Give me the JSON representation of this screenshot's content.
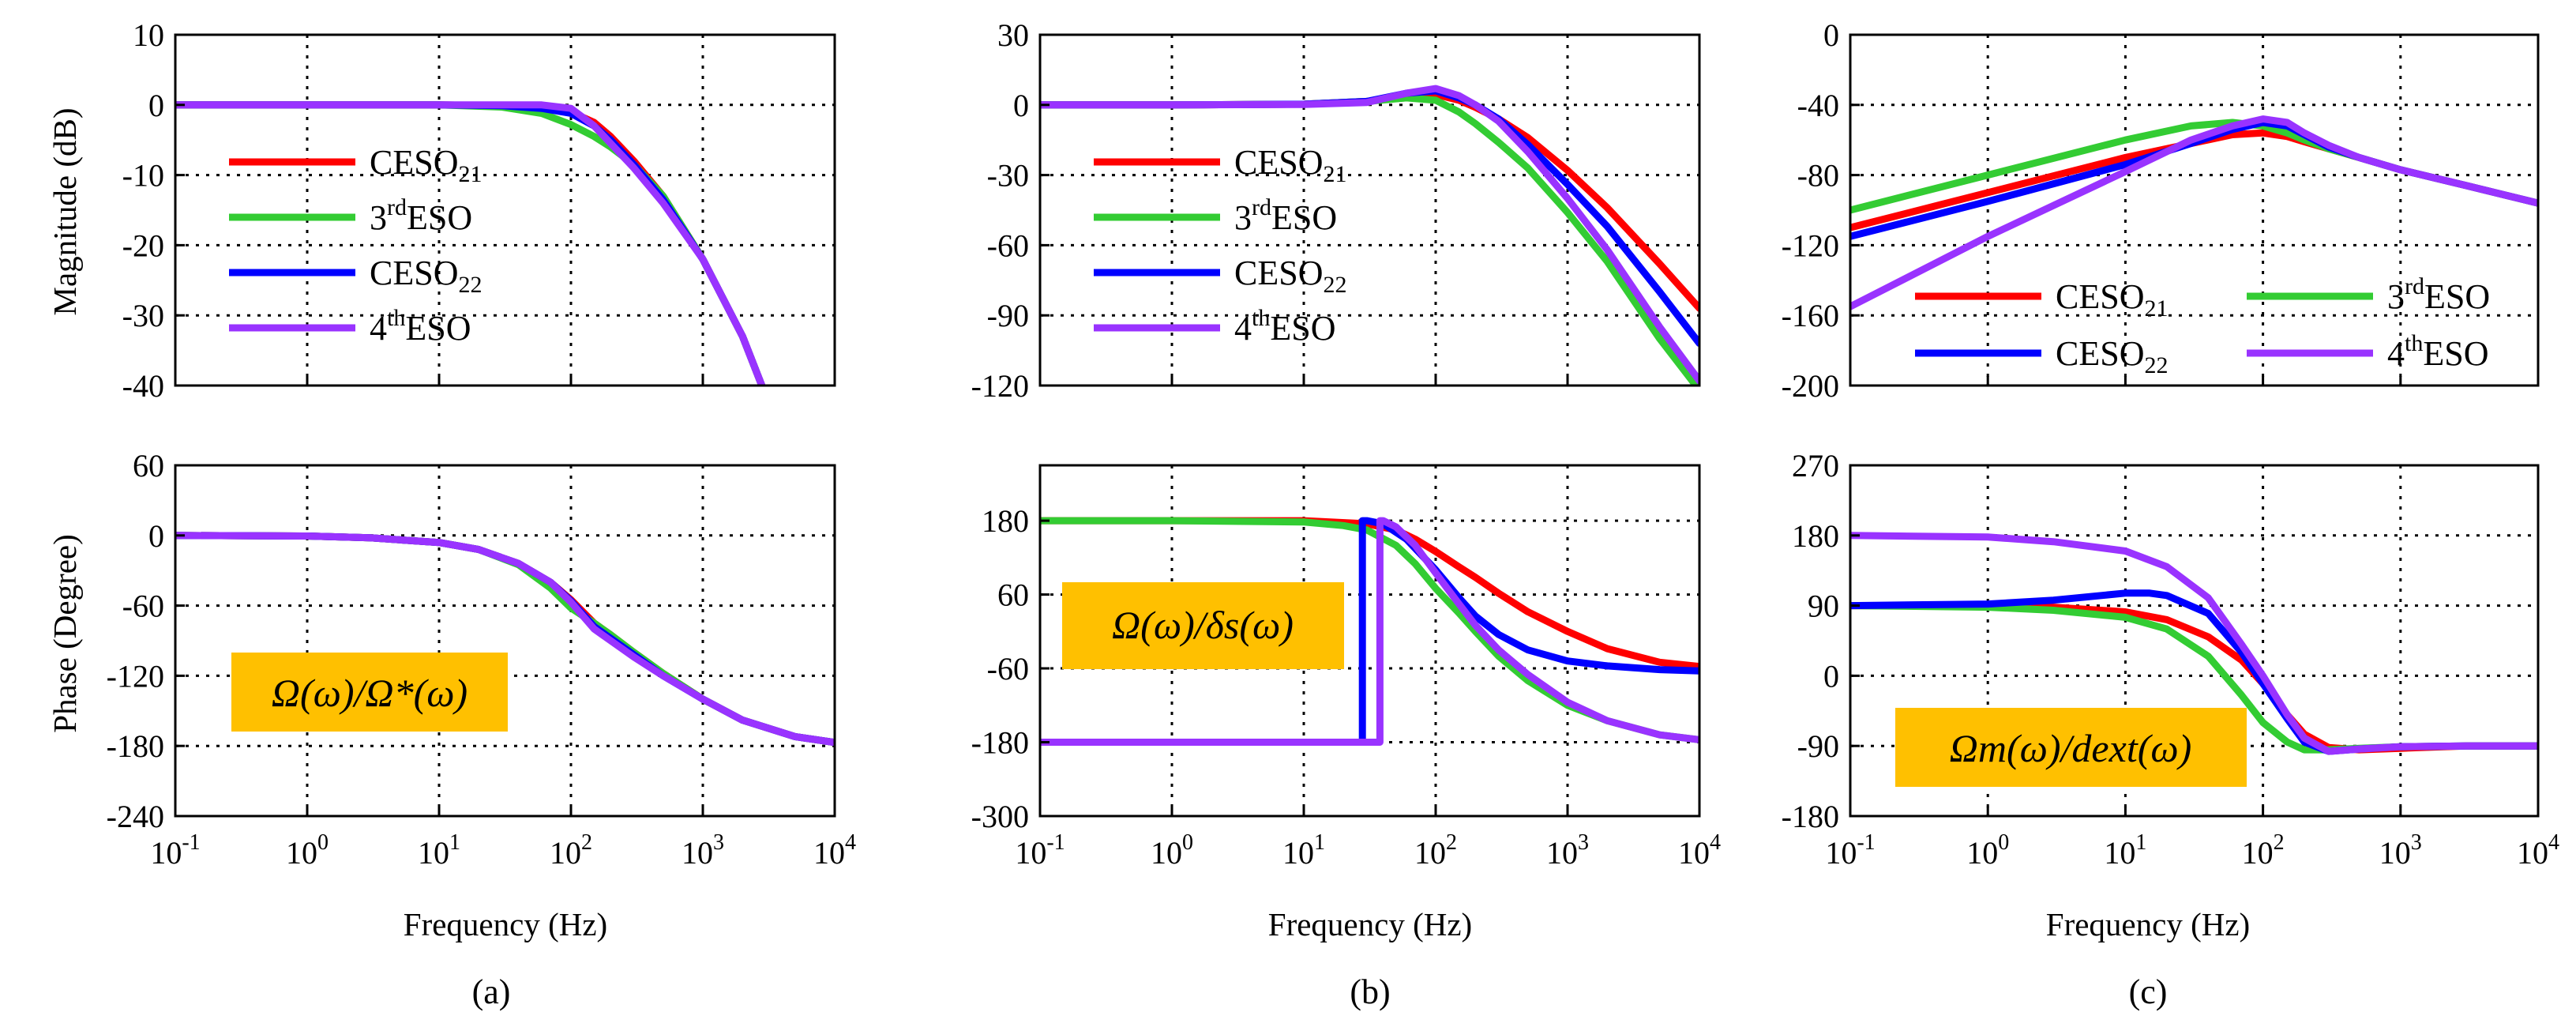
{
  "figure": {
    "panels": [
      {
        "caption": "(a)",
        "xlabel": "Frequency (Hz)",
        "ylabel_mag": "Magnitude (dB)",
        "ylabel_phase": "Phase (Degree)"
      },
      {
        "caption": "(b)",
        "xlabel": "Frequency (Hz)",
        "ylabel_mag": "",
        "ylabel_phase": ""
      },
      {
        "caption": "(c)",
        "xlabel": "Frequency (Hz)",
        "ylabel_mag": "",
        "ylabel_phase": ""
      }
    ],
    "annotations": [
      {
        "text": "Ω(ω)/Ω*(ω)",
        "bg": "#FFC000"
      },
      {
        "text": "Ω(ω)/δs(ω)",
        "bg": "#FFC000"
      },
      {
        "text": "Ωm(ω)/dext(ω)",
        "bg": "#FFC000"
      }
    ]
  },
  "chart_data": [
    {
      "id": "a-mag",
      "type": "line",
      "xscale": "log",
      "xlim": [
        0.1,
        10000
      ],
      "ylim": [
        -40,
        10
      ],
      "ylabel": "Magnitude (dB)",
      "yticks": [
        10,
        0,
        -10,
        -20,
        -30,
        -40
      ],
      "grid": true,
      "legend": "left",
      "series": [
        {
          "name": "CESO21",
          "color": "#FF0000",
          "x": [
            0.1,
            1,
            10,
            30,
            60,
            100,
            150,
            200,
            300,
            500,
            1000,
            2000,
            2800
          ],
          "y": [
            0,
            0,
            0,
            -0.1,
            -0.4,
            -1.0,
            -2.5,
            -4.5,
            -8,
            -13,
            -22,
            -33,
            -40
          ]
        },
        {
          "name": "3rdESO",
          "color": "#33CC33",
          "x": [
            0.1,
            1,
            10,
            30,
            60,
            100,
            150,
            200,
            300,
            500,
            1000,
            2000,
            2800
          ],
          "y": [
            0,
            0,
            0,
            -0.3,
            -1.2,
            -2.8,
            -4.5,
            -6,
            -8.5,
            -13,
            -22,
            -33,
            -40
          ]
        },
        {
          "name": "CESO22",
          "color": "#0000FF",
          "x": [
            0.1,
            1,
            10,
            30,
            60,
            100,
            150,
            200,
            300,
            500,
            1000,
            2000,
            2800
          ],
          "y": [
            0,
            0,
            0,
            -0.1,
            -0.5,
            -1.2,
            -3,
            -5,
            -8.5,
            -13.5,
            -22,
            -33,
            -40
          ]
        },
        {
          "name": "4thESO",
          "color": "#9933FF",
          "x": [
            0.1,
            1,
            10,
            30,
            60,
            100,
            150,
            200,
            300,
            500,
            1000,
            2000,
            2800
          ],
          "y": [
            0,
            0,
            0,
            0,
            0,
            -0.5,
            -3,
            -5.5,
            -9,
            -14,
            -22,
            -33,
            -40
          ]
        }
      ]
    },
    {
      "id": "a-phase",
      "type": "line",
      "xscale": "log",
      "xlim": [
        0.1,
        10000
      ],
      "ylim": [
        -240,
        60
      ],
      "ylabel": "Phase (Degree)",
      "xlabel": "Frequency (Hz)",
      "yticks": [
        60,
        0,
        -60,
        -120,
        -180,
        -240
      ],
      "grid": true,
      "series": [
        {
          "name": "CESO21",
          "color": "#FF0000",
          "x": [
            0.1,
            1,
            3,
            10,
            20,
            40,
            70,
            100,
            150,
            200,
            300,
            500,
            1000,
            2000,
            5000,
            10000
          ],
          "y": [
            0,
            -0.5,
            -2,
            -6,
            -12,
            -24,
            -40,
            -55,
            -75,
            -85,
            -100,
            -118,
            -140,
            -158,
            -172,
            -177
          ]
        },
        {
          "name": "3rdESO",
          "color": "#33CC33",
          "x": [
            0.1,
            1,
            3,
            10,
            20,
            40,
            70,
            100,
            150,
            200,
            300,
            500,
            1000,
            2000,
            5000,
            10000
          ],
          "y": [
            0,
            -0.5,
            -2,
            -6,
            -12,
            -25,
            -45,
            -62,
            -75,
            -85,
            -100,
            -118,
            -140,
            -158,
            -172,
            -177
          ]
        },
        {
          "name": "CESO22",
          "color": "#0000FF",
          "x": [
            0.1,
            1,
            3,
            10,
            20,
            40,
            70,
            100,
            150,
            200,
            300,
            500,
            1000,
            2000,
            5000,
            10000
          ],
          "y": [
            0,
            -0.5,
            -2,
            -6,
            -12,
            -24,
            -40,
            -56,
            -78,
            -88,
            -102,
            -120,
            -140,
            -158,
            -172,
            -177
          ]
        },
        {
          "name": "4thESO",
          "color": "#9933FF",
          "x": [
            0.1,
            1,
            3,
            10,
            20,
            40,
            70,
            100,
            150,
            200,
            300,
            500,
            1000,
            2000,
            5000,
            10000
          ],
          "y": [
            0,
            -0.5,
            -2,
            -6,
            -12,
            -24,
            -40,
            -57,
            -80,
            -90,
            -104,
            -120,
            -140,
            -158,
            -172,
            -177
          ]
        }
      ]
    },
    {
      "id": "b-mag",
      "type": "line",
      "xscale": "log",
      "xlim": [
        0.1,
        10000
      ],
      "ylim": [
        -120,
        30
      ],
      "yticks": [
        30,
        0,
        -30,
        -60,
        -90,
        -120
      ],
      "grid": true,
      "legend": "left",
      "series": [
        {
          "name": "CESO21",
          "color": "#FF0000",
          "x": [
            0.1,
            1,
            10,
            30,
            60,
            100,
            150,
            200,
            300,
            500,
            1000,
            2000,
            5000,
            10000
          ],
          "y": [
            0,
            0,
            0.3,
            1.5,
            4,
            4.5,
            2,
            -1,
            -6,
            -14,
            -28,
            -44,
            -68,
            -87
          ]
        },
        {
          "name": "3rdESO",
          "color": "#33CC33",
          "x": [
            0.1,
            1,
            10,
            30,
            60,
            100,
            150,
            200,
            300,
            500,
            1000,
            2000,
            5000,
            10000
          ],
          "y": [
            0,
            0,
            0.3,
            1.5,
            3,
            2,
            -3,
            -8,
            -16,
            -27,
            -46,
            -67,
            -100,
            -122
          ]
        },
        {
          "name": "CESO22",
          "color": "#0000FF",
          "x": [
            0.1,
            1,
            10,
            30,
            60,
            100,
            150,
            200,
            300,
            500,
            1000,
            2000,
            5000,
            10000
          ],
          "y": [
            0,
            0,
            0.3,
            1.5,
            5,
            6,
            3,
            0,
            -6,
            -17,
            -34,
            -52,
            -80,
            -102
          ]
        },
        {
          "name": "4thESO",
          "color": "#9933FF",
          "x": [
            0.1,
            1,
            10,
            30,
            60,
            100,
            150,
            200,
            300,
            500,
            1000,
            2000,
            5000,
            10000
          ],
          "y": [
            0,
            0,
            0.2,
            1,
            5,
            7,
            4,
            0,
            -7,
            -20,
            -40,
            -62,
            -95,
            -118
          ]
        }
      ]
    },
    {
      "id": "b-phase",
      "type": "line",
      "xscale": "log",
      "xlim": [
        0.1,
        10000
      ],
      "ylim": [
        -300,
        270
      ],
      "xlabel": "Frequency (Hz)",
      "yticks": [
        180,
        60,
        -60,
        -180,
        -300
      ],
      "grid": true,
      "series": [
        {
          "name": "CESO21",
          "color": "#FF0000",
          "x": [
            0.1,
            1,
            10,
            30,
            50,
            70,
            100,
            150,
            200,
            300,
            500,
            1000,
            2000,
            5000,
            10000
          ],
          "y": [
            180,
            180,
            180,
            175,
            165,
            150,
            130,
            105,
            88,
            62,
            32,
            0,
            -28,
            -50,
            -57
          ]
        },
        {
          "name": "3rdESO",
          "color": "#33CC33",
          "x": [
            0.1,
            1,
            10,
            20,
            30,
            50,
            70,
            100,
            150,
            200,
            300,
            500,
            1000,
            2000,
            5000,
            10000
          ],
          "y": [
            180,
            180,
            178,
            172,
            165,
            140,
            110,
            70,
            30,
            0,
            -40,
            -80,
            -120,
            -145,
            -168,
            -176
          ]
        },
        {
          "name": "CESO22",
          "color": "#0000FF",
          "x": [
            0.1,
            1,
            10,
            25,
            27.8,
            27.8,
            27.9,
            30,
            40,
            60,
            100,
            150,
            200,
            300,
            500,
            1000,
            2000,
            5000,
            10000
          ],
          "y": [
            -180,
            -180,
            -180,
            -180,
            -180,
            180,
            180,
            180,
            175,
            150,
            100,
            55,
            25,
            -5,
            -30,
            -48,
            -56,
            -62,
            -64
          ]
        },
        {
          "name": "4thESO",
          "color": "#9933FF",
          "x": [
            0.1,
            1,
            10,
            30,
            37.8,
            37.8,
            37.9,
            40,
            50,
            70,
            100,
            150,
            200,
            300,
            500,
            1000,
            2000,
            5000,
            10000
          ],
          "y": [
            -180,
            -180,
            -180,
            -180,
            -180,
            180,
            180,
            180,
            170,
            140,
            95,
            45,
            10,
            -30,
            -70,
            -115,
            -145,
            -168,
            -176
          ]
        }
      ]
    },
    {
      "id": "c-mag",
      "type": "line",
      "xscale": "log",
      "xlim": [
        0.1,
        10000
      ],
      "ylim": [
        -200,
        0
      ],
      "yticks": [
        0,
        -40,
        -80,
        -120,
        -160,
        -200
      ],
      "grid": true,
      "legend": "bottom",
      "series": [
        {
          "name": "CESO21",
          "color": "#FF0000",
          "x": [
            0.1,
            1,
            10,
            30,
            60,
            100,
            150,
            200,
            300,
            500,
            1000,
            3000,
            10000
          ],
          "y": [
            -110,
            -90,
            -70,
            -62,
            -57,
            -56,
            -58,
            -61,
            -65,
            -70,
            -77,
            -86,
            -96
          ]
        },
        {
          "name": "3rdESO",
          "color": "#33CC33",
          "x": [
            0.1,
            1,
            10,
            30,
            60,
            100,
            150,
            200,
            300,
            500,
            1000,
            3000,
            10000
          ],
          "y": [
            -100,
            -80,
            -60,
            -52,
            -50,
            -52,
            -56,
            -60,
            -65,
            -70,
            -77,
            -86,
            -96
          ]
        },
        {
          "name": "CESO22",
          "color": "#0000FF",
          "x": [
            0.1,
            1,
            10,
            30,
            60,
            100,
            150,
            200,
            300,
            500,
            1000,
            3000,
            10000
          ],
          "y": [
            -115,
            -95,
            -74,
            -62,
            -54,
            -50,
            -52,
            -57,
            -64,
            -70,
            -77,
            -86,
            -96
          ]
        },
        {
          "name": "4thESO",
          "color": "#9933FF",
          "x": [
            0.1,
            1,
            10,
            30,
            60,
            100,
            150,
            200,
            300,
            500,
            1000,
            3000,
            10000
          ],
          "y": [
            -155,
            -115,
            -78,
            -60,
            -52,
            -48,
            -50,
            -56,
            -63,
            -70,
            -77,
            -86,
            -96
          ]
        }
      ]
    },
    {
      "id": "c-phase",
      "type": "line",
      "xscale": "log",
      "xlim": [
        0.1,
        10000
      ],
      "ylim": [
        -180,
        270
      ],
      "xlabel": "Frequency (Hz)",
      "yticks": [
        270,
        180,
        90,
        0,
        -90,
        -180
      ],
      "grid": true,
      "series": [
        {
          "name": "CESO21",
          "color": "#FF0000",
          "x": [
            0.1,
            1,
            3,
            10,
            20,
            40,
            70,
            100,
            150,
            200,
            300,
            500,
            1000,
            3000,
            10000
          ],
          "y": [
            90,
            90,
            88,
            82,
            72,
            50,
            20,
            -10,
            -50,
            -75,
            -92,
            -95,
            -93,
            -90,
            -90
          ]
        },
        {
          "name": "3rdESO",
          "color": "#33CC33",
          "x": [
            0.1,
            1,
            3,
            10,
            20,
            40,
            70,
            100,
            150,
            200,
            300,
            500,
            1000,
            3000,
            10000
          ],
          "y": [
            90,
            88,
            84,
            75,
            60,
            25,
            -25,
            -60,
            -85,
            -95,
            -95,
            -93,
            -91,
            -90,
            -90
          ]
        },
        {
          "name": "CESO22",
          "color": "#0000FF",
          "x": [
            0.1,
            1,
            3,
            10,
            15,
            20,
            40,
            70,
            100,
            150,
            200,
            300,
            500,
            1000,
            3000,
            10000
          ],
          "y": [
            90,
            92,
            97,
            106,
            106,
            103,
            80,
            30,
            -10,
            -55,
            -85,
            -97,
            -94,
            -91,
            -90,
            -90
          ]
        },
        {
          "name": "4thESO",
          "color": "#9933FF",
          "x": [
            0.1,
            1,
            3,
            10,
            20,
            40,
            70,
            100,
            150,
            200,
            300,
            500,
            1000,
            3000,
            10000
          ],
          "y": [
            180,
            178,
            172,
            160,
            140,
            100,
            40,
            0,
            -50,
            -80,
            -97,
            -94,
            -91,
            -90,
            -90
          ]
        }
      ]
    }
  ]
}
